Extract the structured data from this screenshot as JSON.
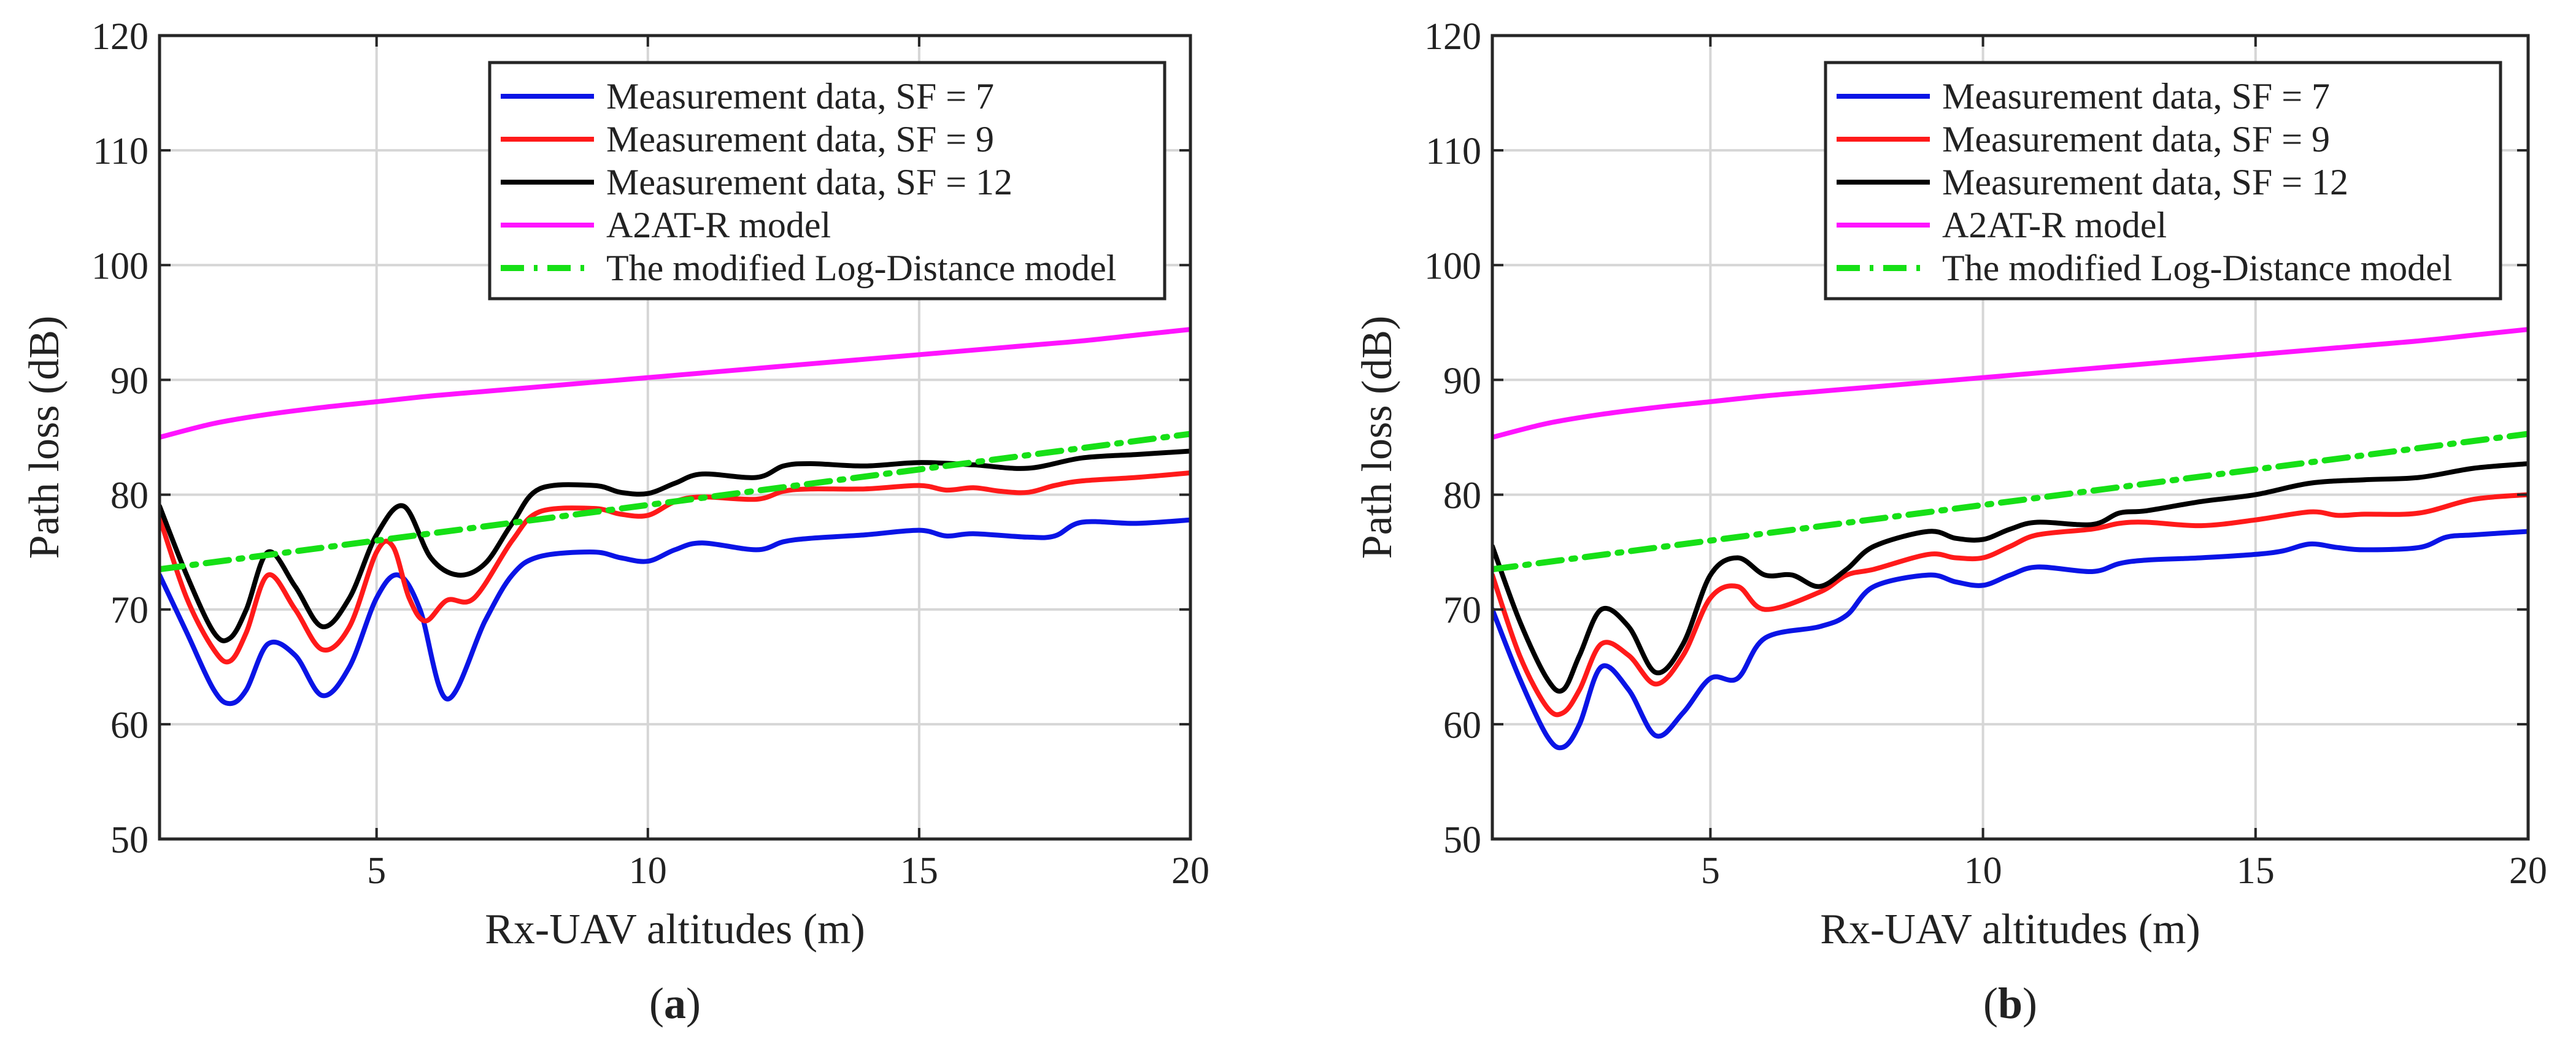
{
  "chart_data": [
    {
      "type": "line",
      "panel_label": "(a)",
      "xlabel": "Rx-UAV altitudes (m)",
      "ylabel": "Path loss (dB)",
      "xlim": [
        1,
        20
      ],
      "ylim": [
        50,
        120
      ],
      "xticks": [
        5,
        10,
        15,
        20
      ],
      "yticks": [
        50,
        60,
        70,
        80,
        90,
        100,
        110,
        120
      ],
      "grid": true,
      "legend_position": "top-right",
      "series": [
        {
          "name": "Measurement data, SF = 7",
          "color": "#0a14e6",
          "style": "solid",
          "x": [
            1,
            1.5,
            2,
            2.3,
            2.6,
            3,
            3.5,
            4,
            4.5,
            5,
            5.4,
            5.8,
            6.3,
            7,
            7.5,
            8,
            9,
            9.5,
            10,
            10.5,
            11,
            12,
            12.5,
            13,
            14,
            15,
            15.5,
            16,
            17,
            17.5,
            18,
            19,
            20
          ],
          "y": [
            73,
            68,
            63,
            61.8,
            63,
            67,
            66,
            62.5,
            65,
            71,
            73,
            70,
            62.2,
            69,
            73,
            74.6,
            75,
            74.5,
            74.2,
            75.2,
            75.8,
            75.2,
            75.9,
            76.2,
            76.5,
            76.9,
            76.4,
            76.6,
            76.3,
            76.4,
            77.6,
            77.5,
            77.8
          ]
        },
        {
          "name": "Measurement data, SF = 9",
          "color": "#ff1a1a",
          "style": "solid",
          "x": [
            1,
            1.5,
            2,
            2.3,
            2.6,
            3,
            3.5,
            4,
            4.5,
            5,
            5.3,
            5.6,
            5.9,
            6.3,
            6.8,
            7.5,
            8,
            9,
            9.5,
            10,
            10.5,
            11,
            12,
            12.5,
            13,
            14,
            15,
            15.5,
            16,
            16.5,
            17,
            17.5,
            18,
            19,
            20
          ],
          "y": [
            78,
            71,
            66.5,
            65.5,
            68,
            73,
            70,
            66.5,
            68.5,
            75,
            75.5,
            71,
            69,
            70.8,
            71,
            76,
            78.5,
            78.8,
            78.3,
            78.2,
            79.4,
            79.8,
            79.6,
            80.3,
            80.5,
            80.5,
            80.8,
            80.4,
            80.6,
            80.3,
            80.2,
            80.8,
            81.2,
            81.5,
            81.9
          ]
        },
        {
          "name": "Measurement data, SF = 12",
          "color": "#000000",
          "style": "solid",
          "x": [
            1,
            1.5,
            2,
            2.3,
            2.6,
            3,
            3.5,
            4,
            4.5,
            5,
            5.5,
            6,
            6.5,
            7,
            7.5,
            8,
            9,
            9.5,
            10,
            10.5,
            11,
            12,
            12.5,
            13,
            14,
            15,
            16,
            17,
            18,
            19,
            20
          ],
          "y": [
            79,
            73,
            68,
            67.5,
            70,
            75,
            72,
            68.5,
            71,
            76.5,
            79,
            74.5,
            73,
            74,
            77.5,
            80.5,
            80.8,
            80.2,
            80.1,
            81,
            81.8,
            81.5,
            82.5,
            82.7,
            82.5,
            82.8,
            82.6,
            82.3,
            83.2,
            83.5,
            83.8
          ]
        },
        {
          "name": "A2AT-R model",
          "color": "#ff14ff",
          "style": "solid",
          "x": [
            1,
            2,
            3,
            4,
            5,
            6,
            7,
            8,
            9,
            10,
            11,
            12,
            13,
            14,
            15,
            16,
            17,
            18,
            19,
            20
          ],
          "y": [
            85,
            86.2,
            87,
            87.6,
            88.1,
            88.6,
            89,
            89.4,
            89.8,
            90.2,
            90.6,
            91,
            91.4,
            91.8,
            92.2,
            92.6,
            93,
            93.4,
            93.9,
            94.4
          ]
        },
        {
          "name": "The modified Log-Distance model",
          "color": "#16e016",
          "style": "dashdot",
          "x": [
            1,
            5,
            10,
            15,
            20
          ],
          "y": [
            73.5,
            76,
            79.1,
            82.2,
            85.3
          ]
        }
      ]
    },
    {
      "type": "line",
      "panel_label": "(b)",
      "xlabel": "Rx-UAV altitudes (m)",
      "ylabel": "Path loss (dB)",
      "xlim": [
        1,
        20
      ],
      "ylim": [
        50,
        120
      ],
      "xticks": [
        5,
        10,
        15,
        20
      ],
      "yticks": [
        50,
        60,
        70,
        80,
        90,
        100,
        110,
        120
      ],
      "grid": true,
      "legend_position": "top-right",
      "series": [
        {
          "name": "Measurement data, SF = 7",
          "color": "#0a14e6",
          "style": "solid",
          "x": [
            1,
            1.5,
            2,
            2.3,
            2.6,
            3,
            3.5,
            4,
            4.5,
            5,
            5.5,
            6,
            7,
            7.5,
            8,
            9,
            9.5,
            10,
            10.5,
            11,
            12,
            12.5,
            13,
            14,
            15,
            15.5,
            16,
            16.5,
            17,
            18,
            18.5,
            19,
            20
          ],
          "y": [
            70,
            64,
            59,
            58,
            60,
            65,
            63,
            59,
            61,
            64,
            64,
            67.5,
            68.5,
            69.5,
            72,
            73,
            72.4,
            72.1,
            73,
            73.7,
            73.3,
            74,
            74.3,
            74.5,
            74.8,
            75.1,
            75.7,
            75.4,
            75.2,
            75.4,
            76.3,
            76.5,
            76.8
          ]
        },
        {
          "name": "Measurement data, SF = 9",
          "color": "#ff1a1a",
          "style": "solid",
          "x": [
            1,
            1.5,
            2,
            2.3,
            2.6,
            3,
            3.5,
            4,
            4.5,
            5,
            5.5,
            6,
            7,
            7.5,
            8,
            9,
            9.5,
            10,
            10.5,
            11,
            12,
            12.5,
            13,
            14,
            15,
            16,
            16.5,
            17,
            18,
            19,
            20
          ],
          "y": [
            73,
            66,
            61.5,
            61,
            63,
            67,
            66,
            63.5,
            66,
            71,
            72,
            70,
            71.5,
            73,
            73.5,
            74.8,
            74.5,
            74.5,
            75.5,
            76.5,
            77,
            77.5,
            77.6,
            77.3,
            77.8,
            78.5,
            78.2,
            78.3,
            78.4,
            79.6,
            80
          ]
        },
        {
          "name": "Measurement data, SF = 12",
          "color": "#000000",
          "style": "solid",
          "x": [
            1,
            1.5,
            2,
            2.3,
            2.6,
            3,
            3.5,
            4,
            4.5,
            5,
            5.5,
            6,
            6.5,
            7,
            7.5,
            8,
            9,
            9.5,
            10,
            10.5,
            11,
            12,
            12.5,
            13,
            14,
            15,
            16,
            17,
            18,
            19,
            20
          ],
          "y": [
            75.5,
            69,
            64,
            63,
            66,
            70,
            68.5,
            64.5,
            67,
            73,
            74.5,
            73,
            73,
            72,
            73.5,
            75.5,
            76.8,
            76.2,
            76.1,
            77,
            77.6,
            77.4,
            78.4,
            78.6,
            79.4,
            80,
            81,
            81.3,
            81.5,
            82.3,
            82.7
          ]
        },
        {
          "name": "A2AT-R model",
          "color": "#ff14ff",
          "style": "solid",
          "x": [
            1,
            2,
            3,
            4,
            5,
            6,
            7,
            8,
            9,
            10,
            11,
            12,
            13,
            14,
            15,
            16,
            17,
            18,
            19,
            20
          ],
          "y": [
            85,
            86.2,
            87,
            87.6,
            88.1,
            88.6,
            89,
            89.4,
            89.8,
            90.2,
            90.6,
            91,
            91.4,
            91.8,
            92.2,
            92.6,
            93,
            93.4,
            93.9,
            94.4
          ]
        },
        {
          "name": "The modified Log-Distance model",
          "color": "#16e016",
          "style": "dashdot",
          "x": [
            1,
            5,
            10,
            15,
            20
          ],
          "y": [
            73.5,
            76,
            79.1,
            82.2,
            85.3
          ]
        }
      ]
    }
  ]
}
